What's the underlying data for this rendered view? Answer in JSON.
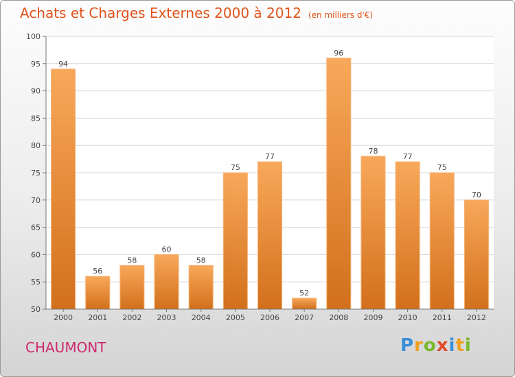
{
  "title": "Achats et Charges Externes 2000 à 2012",
  "subtitle": "(en milliers d'€)",
  "commune": "CHAUMONT",
  "brand": {
    "letters": [
      "P",
      "r",
      "o",
      "x",
      "i",
      "t",
      "i"
    ],
    "colors": [
      "#3a8fd8",
      "#f0a020",
      "#7ab82a",
      "#e04a2a",
      "#3a8fd8",
      "#f0a020",
      "#7ab82a"
    ]
  },
  "colors": {
    "bar_top": "#f8a85a",
    "bar_bottom": "#d2701c",
    "title": "#e0531a",
    "commune": "#cc2a6e"
  },
  "chart_data": {
    "type": "bar",
    "categories": [
      "2000",
      "2001",
      "2002",
      "2003",
      "2004",
      "2005",
      "2006",
      "2007",
      "2008",
      "2009",
      "2010",
      "2011",
      "2012"
    ],
    "values": [
      94,
      56,
      58,
      60,
      58,
      75,
      77,
      52,
      96,
      78,
      77,
      75,
      70
    ],
    "title": "Achats et Charges Externes 2000 à 2012",
    "subtitle": "(en milliers d'€)",
    "ylim": [
      50,
      100
    ],
    "yticks": [
      50,
      55,
      60,
      65,
      70,
      75,
      80,
      85,
      90,
      95,
      100
    ],
    "grid": true,
    "legend": "none"
  }
}
